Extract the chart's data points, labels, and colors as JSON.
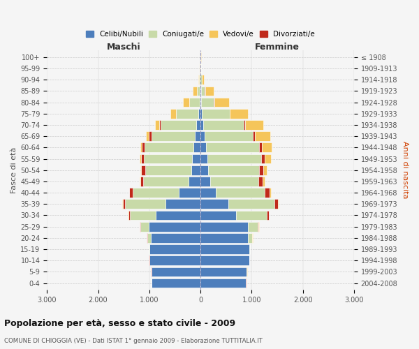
{
  "age_groups": [
    "0-4",
    "5-9",
    "10-14",
    "15-19",
    "20-24",
    "25-29",
    "30-34",
    "35-39",
    "40-44",
    "45-49",
    "50-54",
    "55-59",
    "60-64",
    "65-69",
    "70-74",
    "75-79",
    "80-84",
    "85-89",
    "90-94",
    "95-99",
    "100+"
  ],
  "birth_years": [
    "2004-2008",
    "1999-2003",
    "1994-1998",
    "1989-1993",
    "1984-1988",
    "1979-1983",
    "1974-1978",
    "1969-1973",
    "1964-1968",
    "1959-1963",
    "1954-1958",
    "1949-1953",
    "1944-1948",
    "1939-1943",
    "1934-1938",
    "1929-1933",
    "1924-1928",
    "1919-1923",
    "1914-1918",
    "1909-1913",
    "≤ 1908"
  ],
  "colors": {
    "celibi": "#4d7ebc",
    "coniugati": "#c8daa8",
    "vedovi": "#f5c55a",
    "divorziati": "#c0291a"
  },
  "males": {
    "celibi": [
      950,
      960,
      1000,
      1000,
      970,
      1010,
      870,
      680,
      430,
      230,
      185,
      165,
      140,
      115,
      85,
      45,
      20,
      12,
      5,
      3,
      2
    ],
    "coniugati": [
      2,
      2,
      3,
      5,
      75,
      170,
      510,
      790,
      900,
      890,
      900,
      940,
      950,
      845,
      690,
      430,
      195,
      55,
      18,
      5,
      2
    ],
    "vedovi": [
      2,
      2,
      2,
      2,
      5,
      5,
      5,
      5,
      5,
      10,
      15,
      25,
      30,
      50,
      80,
      100,
      120,
      80,
      20,
      5,
      1
    ],
    "divorziati": [
      2,
      2,
      2,
      2,
      5,
      10,
      30,
      50,
      60,
      60,
      70,
      60,
      55,
      50,
      30,
      10,
      5,
      5,
      2,
      0,
      0
    ]
  },
  "females": {
    "nubili": [
      890,
      900,
      950,
      960,
      920,
      920,
      690,
      540,
      300,
      185,
      155,
      140,
      105,
      75,
      55,
      25,
      12,
      8,
      4,
      3,
      2
    ],
    "coniugati": [
      2,
      2,
      3,
      5,
      85,
      200,
      600,
      900,
      960,
      950,
      990,
      1040,
      1040,
      950,
      790,
      540,
      245,
      75,
      18,
      5,
      3
    ],
    "vedovi": [
      2,
      2,
      2,
      2,
      5,
      10,
      10,
      10,
      20,
      40,
      70,
      130,
      200,
      300,
      355,
      355,
      295,
      175,
      48,
      10,
      2
    ],
    "divorziati": [
      2,
      2,
      2,
      2,
      5,
      15,
      40,
      70,
      90,
      80,
      80,
      70,
      50,
      40,
      25,
      10,
      10,
      5,
      2,
      0,
      0
    ]
  },
  "title": "Popolazione per età, sesso e stato civile - 2009",
  "subtitle": "COMUNE DI CHIOGGIA (VE) - Dati ISTAT 1° gennaio 2009 - Elaborazione TUTTITALIA.IT",
  "xlabel_left": "Maschi",
  "xlabel_right": "Femmine",
  "ylabel_left": "Fasce di età",
  "ylabel_right": "Anni di nascita",
  "xlim": 3000,
  "legend_labels": [
    "Celibi/Nubili",
    "Coniugati/e",
    "Vedovi/e",
    "Divorziati/e"
  ],
  "bg_color": "#f5f5f5",
  "grid_color": "#cccccc"
}
